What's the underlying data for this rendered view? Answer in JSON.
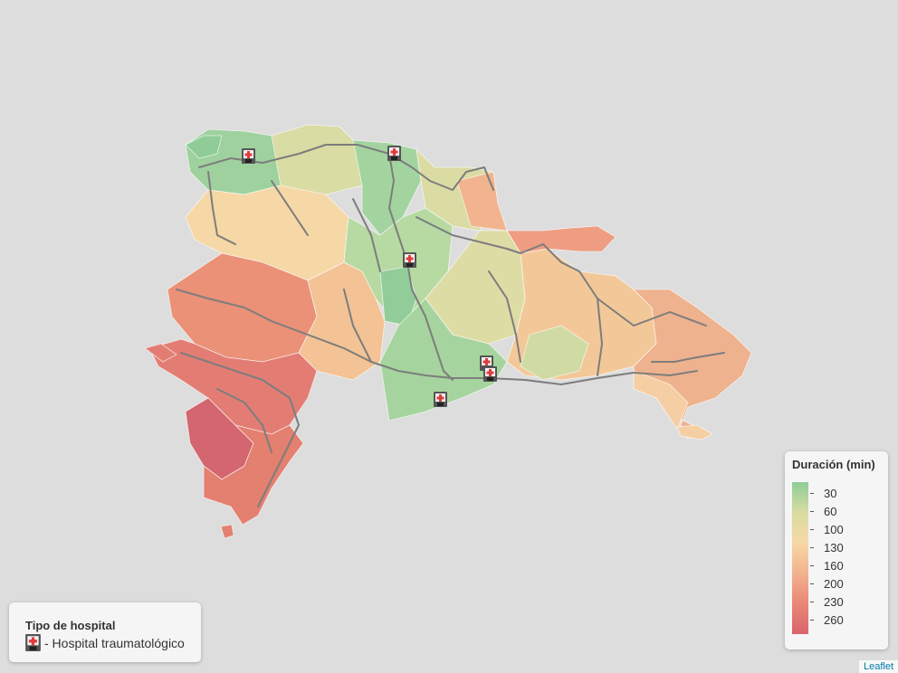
{
  "map": {
    "hospital_icon": "hospital-icon",
    "hospital_count": 5,
    "road_color": "#7d7d7d",
    "background": "#dddddd"
  },
  "hospital_legend": {
    "title": "Tipo de hospital",
    "item_label": "- Hospital traumatológico",
    "icon": "hospital-icon"
  },
  "duration_legend": {
    "title": "Duración (min)",
    "ticks": [
      "30",
      "60",
      "100",
      "130",
      "160",
      "200",
      "230",
      "260"
    ],
    "colors": [
      "#8fcc98",
      "#d8dca2",
      "#f7d8a6",
      "#f2b28e",
      "#e98676",
      "#d9646e"
    ]
  },
  "attribution": "Leaflet"
}
